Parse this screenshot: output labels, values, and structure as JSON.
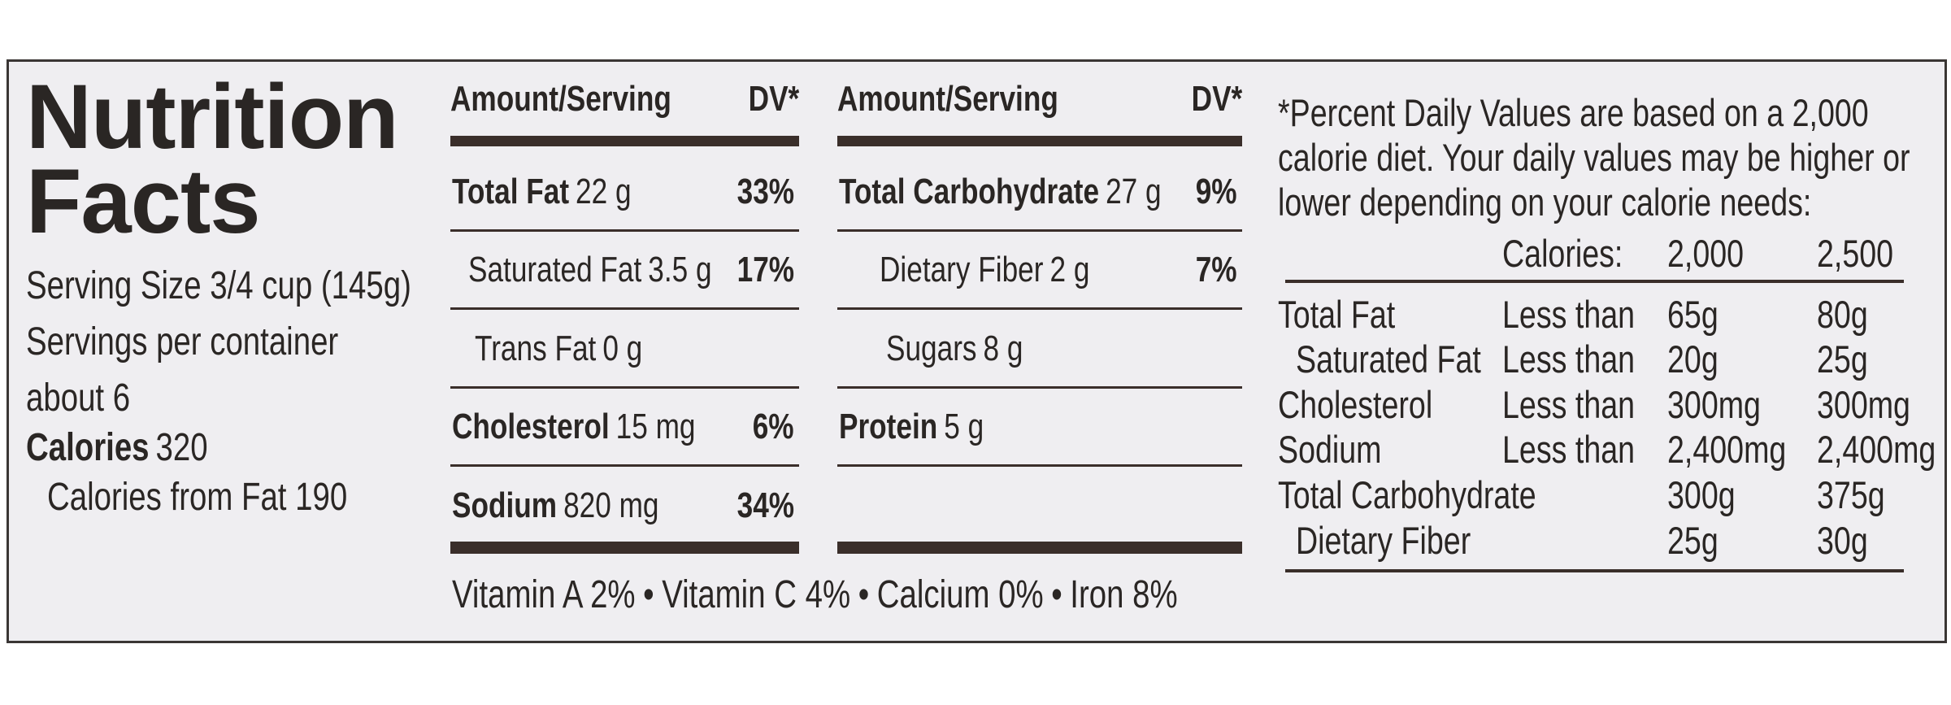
{
  "title": "Nutrition Facts",
  "serving": [
    "Serving Size 3/4 cup (145g)",
    "Servings per container",
    "about 6"
  ],
  "calories": {
    "label": "Calories",
    "value": "320"
  },
  "calories_from_fat": "Calories from Fat 190",
  "columns": [
    {
      "header": [
        "Amount/Serving",
        "DV*"
      ],
      "nutrients": [
        {
          "name": "Total Fat",
          "amount": "22 g",
          "dv": "33%",
          "sub": [
            {
              "name": "Saturated Fat",
              "amount": "3.5 g",
              "dv": "17%"
            },
            {
              "name": "Trans Fat",
              "amount": "0 g"
            }
          ]
        },
        {
          "name": "Cholesterol",
          "amount": "15 mg",
          "dv": "6%"
        },
        {
          "name": "Sodium",
          "amount": "820 mg",
          "dv": "34%"
        }
      ]
    },
    {
      "header": [
        "Amount/Serving",
        "DV*"
      ],
      "nutrients": [
        {
          "name": "Total Carbohydrate",
          "amount": "27 g",
          "dv": "9%",
          "sub": [
            {
              "name": "Dietary Fiber",
              "amount": "2 g",
              "dv": "7%"
            },
            {
              "name": "Sugars",
              "amount": "8 g"
            }
          ]
        },
        {
          "name": "Protein",
          "amount": "5 g"
        }
      ]
    }
  ],
  "vitamins": [
    "Vitamin A 2%",
    "Vitamin C 4%",
    "Calcium 0%",
    "Iron 8%"
  ],
  "footnote": [
    "*Percent Daily Values are based on a 2,000",
    "calorie diet. Your daily values may be higher or",
    "lower depending on your calorie needs:"
  ],
  "dv_table": {
    "header": [
      "Calories:",
      "2,000",
      "2,500"
    ],
    "rows": [
      {
        "name": "Total Fat",
        "qualifier": "Less than",
        "v2000": "65g",
        "v2500": "80g"
      },
      {
        "name": "Saturated Fat",
        "qualifier": "Less than",
        "v2000": "20g",
        "v2500": "25g"
      },
      {
        "name": "Cholesterol",
        "qualifier": "Less than",
        "v2000": "300mg",
        "v2500": "300mg"
      },
      {
        "name": "Sodium",
        "qualifier": "Less than",
        "v2000": "2,400mg",
        "v2500": "2,400mg"
      },
      {
        "name": "Total Carbohydrate",
        "v2000": "300g",
        "v2500": "375g"
      },
      {
        "name": "Dietary Fiber",
        "v2000": "25g",
        "v2500": "30g"
      }
    ]
  }
}
